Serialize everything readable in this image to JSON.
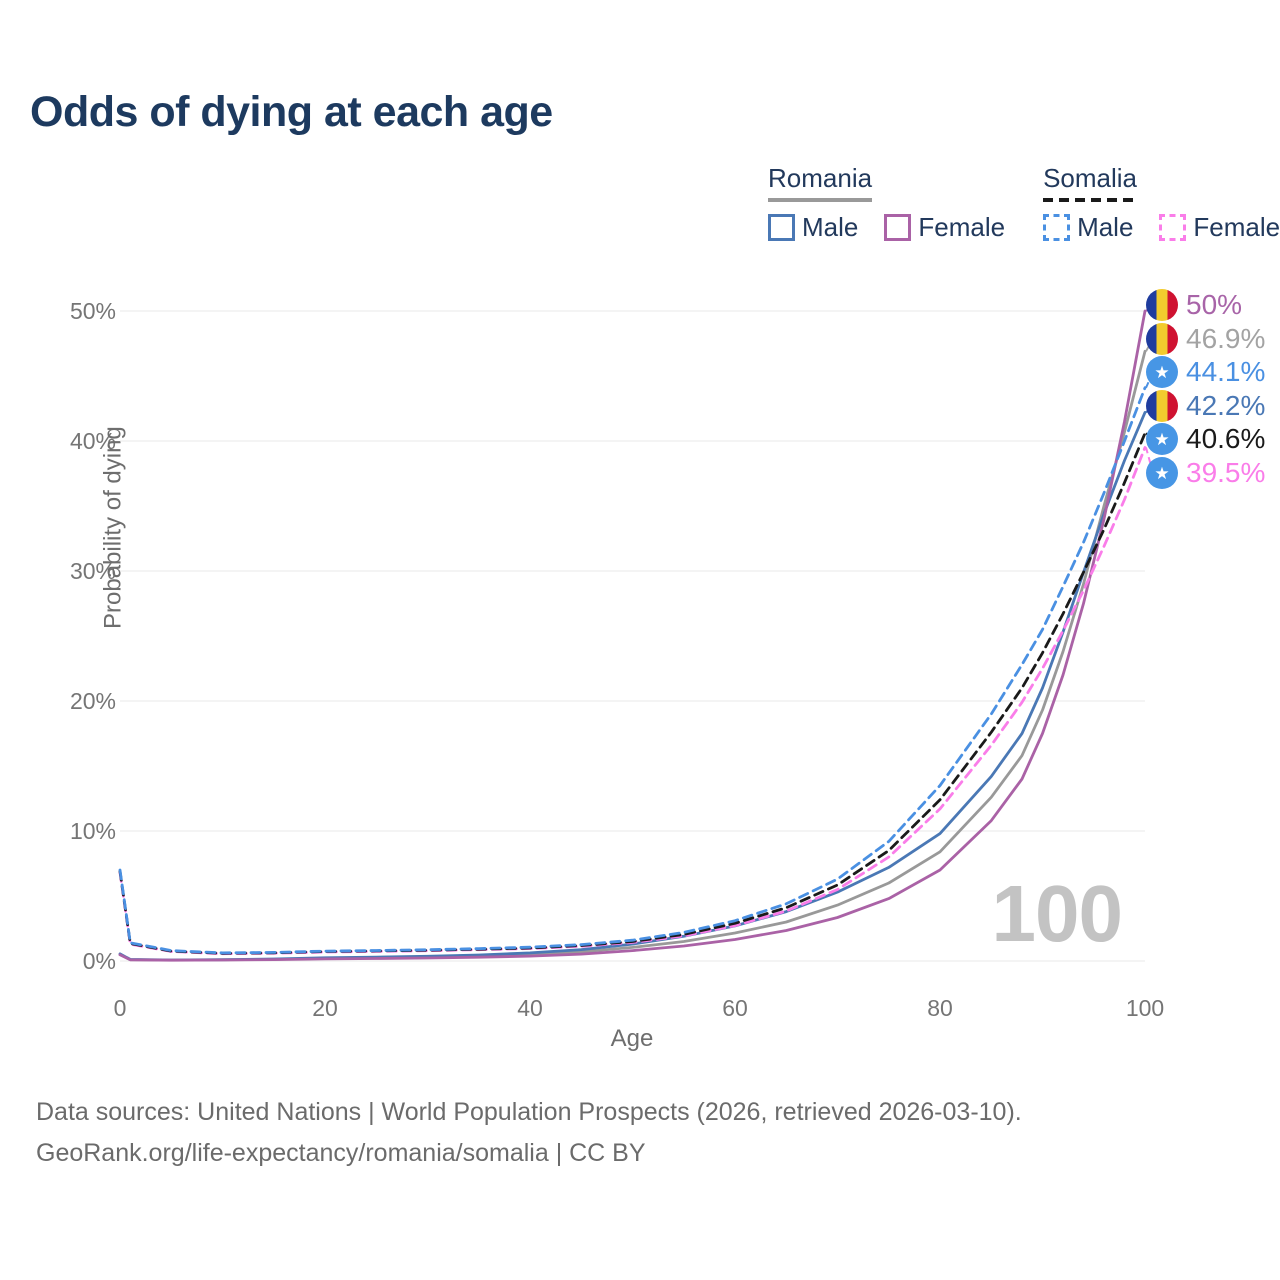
{
  "title": "Odds of dying at each age",
  "legend": {
    "groups": [
      {
        "name": "Romania",
        "line_style": "solid",
        "underline_color": "#999999",
        "items": [
          {
            "label": "Male",
            "color": "#4a78b5",
            "dashed": false
          },
          {
            "label": "Female",
            "color": "#aa62a6",
            "dashed": false
          }
        ]
      },
      {
        "name": "Somalia",
        "line_style": "dashed",
        "underline_color": "#1a1a1a",
        "items": [
          {
            "label": "Male",
            "color": "#4a90e2",
            "dashed": true
          },
          {
            "label": "Female",
            "color": "#fa7de9",
            "dashed": true
          }
        ]
      }
    ]
  },
  "chart_data": {
    "type": "line",
    "title": "Odds of dying at each age",
    "xlabel": "Age",
    "ylabel": "Probability of dying",
    "xlim": [
      0,
      100
    ],
    "ylim_pct": [
      0,
      50
    ],
    "x_ticks": [
      0,
      20,
      40,
      60,
      80,
      100
    ],
    "y_ticks": [
      "0%",
      "10%",
      "20%",
      "30%",
      "40%",
      "50%"
    ],
    "grid": "horizontal",
    "legend_position": "top-right",
    "x": [
      0,
      1,
      5,
      10,
      15,
      20,
      25,
      30,
      35,
      40,
      45,
      50,
      55,
      60,
      65,
      70,
      75,
      80,
      85,
      88,
      90,
      92,
      94,
      96,
      98,
      100
    ],
    "series": [
      {
        "name": "Romania",
        "country": "Romania",
        "color": "#999999",
        "dash": false,
        "end_label": "46.9%",
        "values": [
          0.5,
          0.1,
          0.07,
          0.09,
          0.13,
          0.2,
          0.24,
          0.29,
          0.37,
          0.5,
          0.7,
          1.05,
          1.5,
          2.15,
          3.0,
          4.3,
          6.0,
          8.4,
          12.6,
          15.8,
          19.3,
          23.8,
          29.0,
          35.0,
          40.7,
          46.9
        ]
      },
      {
        "name": "Romania Male",
        "country": "Romania",
        "color": "#4a78b5",
        "dash": false,
        "end_label": "42.2%",
        "values": [
          0.55,
          0.12,
          0.08,
          0.1,
          0.15,
          0.25,
          0.3,
          0.36,
          0.46,
          0.62,
          0.88,
          1.3,
          1.9,
          2.7,
          3.8,
          5.3,
          7.2,
          9.8,
          14.2,
          17.5,
          21.0,
          25.3,
          29.9,
          34.4,
          38.5,
          42.2
        ]
      },
      {
        "name": "Romania Female",
        "country": "Romania",
        "color": "#aa62a6",
        "dash": false,
        "end_label": "50%",
        "values": [
          0.48,
          0.09,
          0.06,
          0.08,
          0.11,
          0.16,
          0.19,
          0.23,
          0.29,
          0.38,
          0.53,
          0.8,
          1.15,
          1.65,
          2.35,
          3.35,
          4.8,
          7.0,
          10.8,
          14.0,
          17.5,
          22.0,
          27.5,
          34.0,
          41.5,
          50.0
        ]
      },
      {
        "name": "Somalia Female",
        "country": "Somalia",
        "color": "#fa7de9",
        "dash": true,
        "end_label": "39.5%",
        "values": [
          6.8,
          1.3,
          0.73,
          0.56,
          0.6,
          0.69,
          0.74,
          0.79,
          0.87,
          0.96,
          1.13,
          1.43,
          1.93,
          2.72,
          3.85,
          5.5,
          8.0,
          11.7,
          16.6,
          19.9,
          22.5,
          25.4,
          28.5,
          31.9,
          35.5,
          39.5
        ]
      },
      {
        "name": "Somalia",
        "country": "Somalia",
        "color": "#1a1a1a",
        "dash": true,
        "end_label": "40.6%",
        "values": [
          6.9,
          1.35,
          0.76,
          0.59,
          0.63,
          0.73,
          0.78,
          0.83,
          0.91,
          1.0,
          1.19,
          1.5,
          2.05,
          2.9,
          4.1,
          5.85,
          8.5,
          12.4,
          17.6,
          21.0,
          23.7,
          26.7,
          29.9,
          33.2,
          36.8,
          40.6
        ]
      },
      {
        "name": "Somalia Male",
        "country": "Somalia",
        "color": "#4a90e2",
        "dash": true,
        "end_label": "44.1%",
        "values": [
          7.0,
          1.4,
          0.8,
          0.62,
          0.66,
          0.76,
          0.81,
          0.87,
          0.95,
          1.06,
          1.26,
          1.6,
          2.2,
          3.1,
          4.4,
          6.3,
          9.2,
          13.5,
          19.0,
          22.8,
          25.5,
          28.8,
          32.2,
          36.0,
          40.0,
          44.1
        ]
      }
    ],
    "annotations": {
      "watermark": "100"
    }
  },
  "end_labels": [
    {
      "value": "50%",
      "pct": 50.0,
      "color": "#a864a8",
      "dash": false,
      "flag": "romania"
    },
    {
      "value": "46.9%",
      "pct": 46.9,
      "color": "#a3a3a3",
      "dash": false,
      "flag": "romania"
    },
    {
      "value": "44.1%",
      "pct": 44.1,
      "color": "#4a90e2",
      "dash": true,
      "flag": "somalia"
    },
    {
      "value": "42.2%",
      "pct": 42.2,
      "color": "#4a78b5",
      "dash": false,
      "flag": "romania"
    },
    {
      "value": "40.6%",
      "pct": 40.6,
      "color": "#1a1a1a",
      "dash": true,
      "flag": "somalia"
    },
    {
      "value": "39.5%",
      "pct": 39.5,
      "color": "#fa7de9",
      "dash": true,
      "flag": "somalia"
    }
  ],
  "flags": {
    "romania_colors": [
      "#1f3c9e",
      "#f2cb2e",
      "#cf1231"
    ],
    "somalia_color": "#4796e5",
    "somalia_star": "★"
  },
  "footer": {
    "line1": "Data sources: United Nations | World Population Prospects (2026, retrieved 2026-03-10).",
    "line2": "GeoRank.org/life-expectancy/romania/somalia | CC BY"
  }
}
